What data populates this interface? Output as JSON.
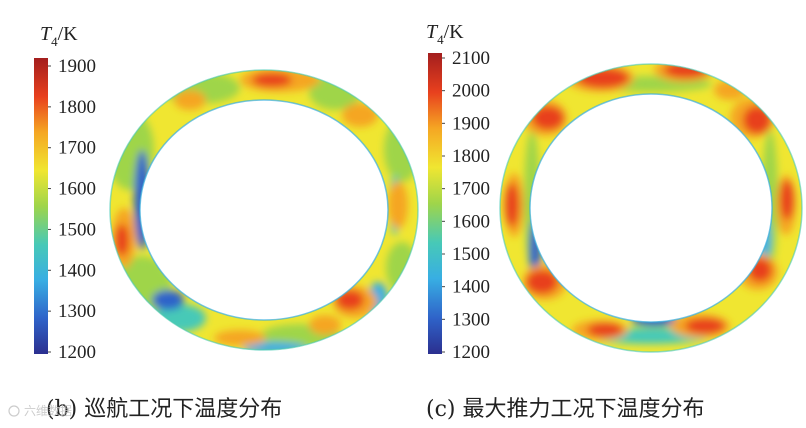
{
  "panels": [
    {
      "id": "b",
      "caption": "(b) 巡航工况下温度分布",
      "colorbar": {
        "label_var": "T",
        "label_sub": "4",
        "label_unit": "/K",
        "ticks": [
          "1900",
          "1800",
          "1700",
          "1600",
          "1500",
          "1400",
          "1300",
          "1200"
        ],
        "min": 1200,
        "max": 1900
      }
    },
    {
      "id": "c",
      "caption": "(c) 最大推力工况下温度分布",
      "colorbar": {
        "label_var": "T",
        "label_sub": "4",
        "label_unit": "/K",
        "ticks": [
          "2100",
          "2000",
          "1900",
          "1800",
          "1700",
          "1600",
          "1500",
          "1400",
          "1300",
          "1200"
        ],
        "min": 1200,
        "max": 2100
      }
    }
  ],
  "colormap": [
    "#2b2f8f",
    "#2f63c9",
    "#38aee3",
    "#47c9b7",
    "#9fd54a",
    "#f0e631",
    "#f5a623",
    "#e8401e",
    "#a31e1e"
  ],
  "watermark": "六维数据"
}
